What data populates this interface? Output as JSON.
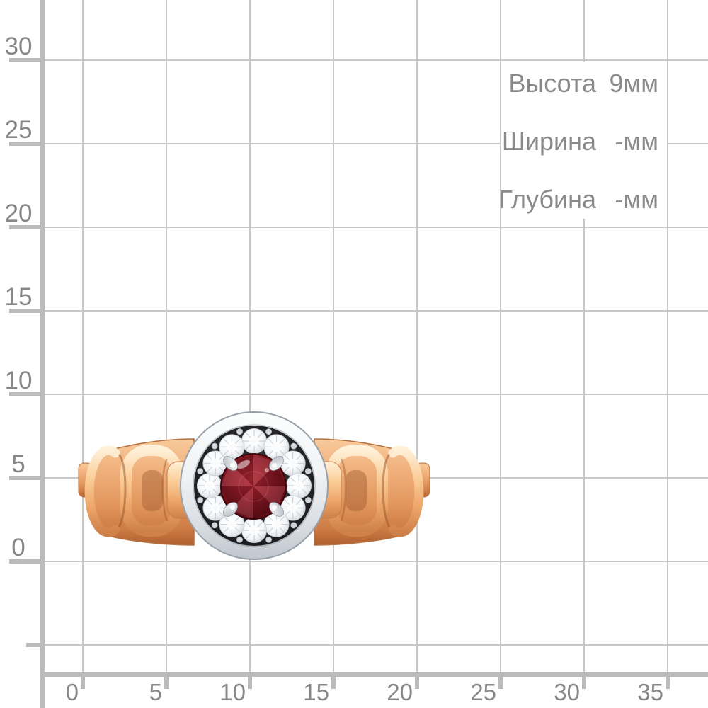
{
  "page": {
    "background": "#ffffff"
  },
  "dimensions_panel": {
    "rows": [
      {
        "label": "Высота",
        "value": "9мм"
      },
      {
        "label": "Ширина",
        "value": "-мм"
      },
      {
        "label": "Глубина",
        "value": "-мм"
      }
    ]
  },
  "ruler": {
    "y_axis_labels": [
      "30",
      "25",
      "20",
      "15",
      "10",
      "5",
      "0"
    ],
    "x_axis_labels": [
      "0",
      "5",
      "10",
      "15",
      "20",
      "25",
      "30",
      "35"
    ]
  },
  "ring_photo": {
    "subject": "gold chain-link ring with red garnet and diamond halo in silver bezel"
  },
  "colors": {
    "grid_line": "#c8c8c8",
    "axis": "#bbbbbb",
    "label_text": "#878787",
    "dimension_text": "#8a8a8a",
    "gold": "#e9a06a",
    "gold_highlight": "#fbd9a8",
    "silver_bezel": "#e9edf0",
    "halo_plate": "#1b1b1e",
    "garnet": "#8e1824",
    "diamond": "#f4f6f8"
  }
}
